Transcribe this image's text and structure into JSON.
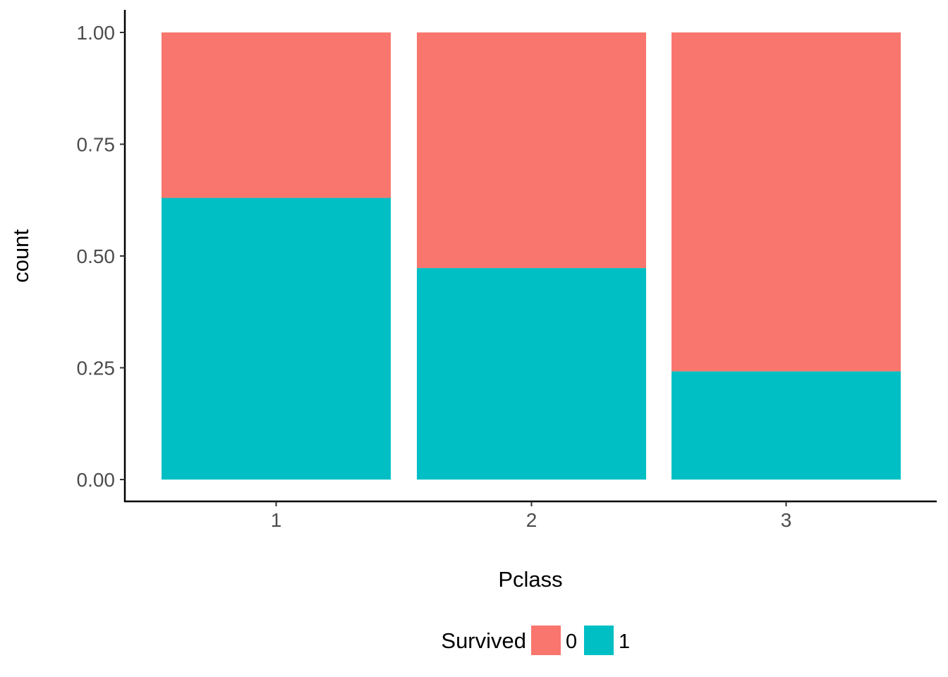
{
  "chart_data": {
    "type": "bar",
    "stacked": true,
    "position": "fill",
    "categories": [
      "1",
      "2",
      "3"
    ],
    "series": [
      {
        "name": "0",
        "values": [
          0.37,
          0.527,
          0.758
        ],
        "color": "#F8766D"
      },
      {
        "name": "1",
        "values": [
          0.63,
          0.473,
          0.242
        ],
        "color": "#00BFC4"
      }
    ],
    "xlabel": "Pclass",
    "ylabel": "count",
    "ylim": [
      0,
      1
    ],
    "yticks": [
      "0.00",
      "0.25",
      "0.50",
      "0.75",
      "1.00"
    ],
    "ytick_values": [
      0,
      0.25,
      0.5,
      0.75,
      1
    ],
    "grid": false,
    "legend": {
      "title": "Survived",
      "placement": "bottom"
    }
  }
}
